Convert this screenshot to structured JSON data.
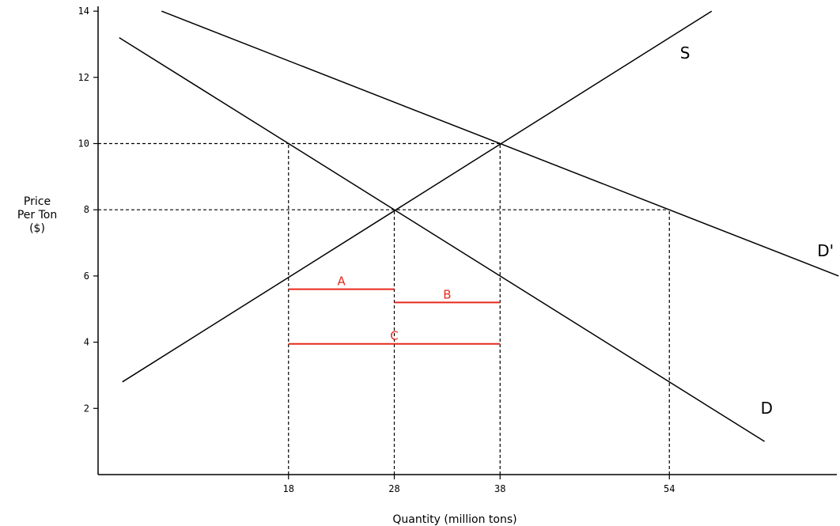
{
  "chart_data": {
    "type": "line",
    "title": "",
    "xlabel": "Quantity (million tons)",
    "ylabel": [
      "Price",
      "Per Ton",
      "($)"
    ],
    "ylim": [
      0,
      14
    ],
    "xlim": [
      0,
      70
    ],
    "y_ticks": [
      2,
      4,
      6,
      8,
      10,
      12,
      14
    ],
    "x_ticks": [
      18,
      28,
      38,
      54
    ],
    "grid": false,
    "series": [
      {
        "name": "S",
        "x": [
          2.3,
          58
        ],
        "y": [
          2.8,
          14
        ]
      },
      {
        "name": "D",
        "x": [
          2,
          63
        ],
        "y": [
          13.2,
          1
        ]
      },
      {
        "name": "D'",
        "x": [
          6,
          70
        ],
        "y": [
          14,
          6
        ]
      }
    ],
    "reference_lines": {
      "horizontal": [
        {
          "y": 10,
          "x_to": 38
        },
        {
          "y": 8,
          "x_to": 54
        }
      ],
      "vertical": [
        {
          "x": 18,
          "y_to": 10
        },
        {
          "x": 28,
          "y_to": 8
        },
        {
          "x": 38,
          "y_to": 10
        },
        {
          "x": 54,
          "y_to": 8
        }
      ]
    },
    "segments": [
      {
        "label": "A",
        "x1": 18,
        "x2": 28,
        "y": 5.6
      },
      {
        "label": "B",
        "x1": 28,
        "x2": 38,
        "y": 5.2
      },
      {
        "label": "C",
        "x1": 18,
        "x2": 38,
        "y": 3.95
      }
    ],
    "colors": {
      "axis": "#000000",
      "curves": "#000000",
      "segments": "#e8291c"
    }
  }
}
